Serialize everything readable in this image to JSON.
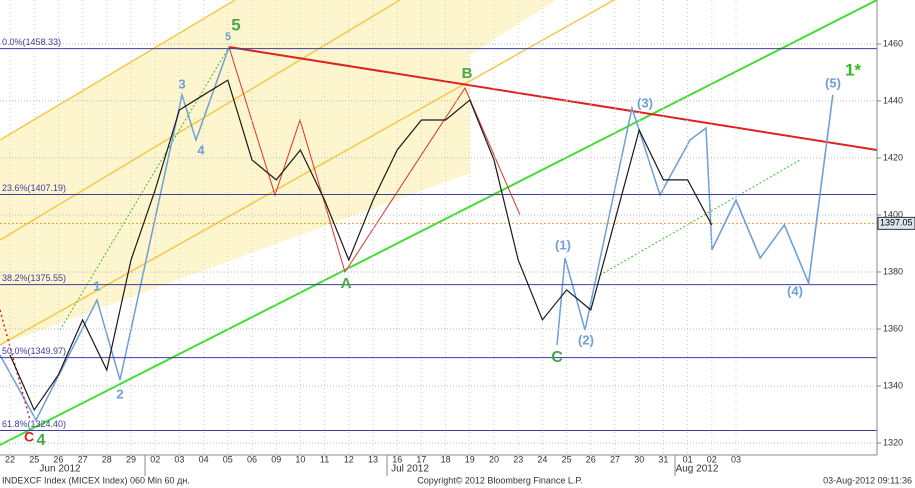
{
  "chart_data": {
    "type": "line",
    "categories": [
      "22",
      "25",
      "26",
      "27",
      "28",
      "29",
      "02",
      "03",
      "04",
      "05",
      "06",
      "09",
      "10",
      "11",
      "12",
      "13",
      "16",
      "17",
      "18",
      "19",
      "20",
      "23",
      "24",
      "25",
      "26",
      "27",
      "30",
      "31",
      "01",
      "02",
      "03",
      null,
      null,
      null,
      null
    ],
    "month_labels": [
      "Jun 2012",
      "Jul 2012",
      "Aug 2012"
    ],
    "series": [
      {
        "color": "#1a1a1a",
        "values": [
          1350.9,
          1331.6,
          1343.9,
          1363.2,
          1345.6,
          1384.2,
          1408.8,
          1436.8,
          1442.1,
          1447.3,
          1419.3,
          1412.3,
          1422.8,
          1405.2,
          1384.2,
          1405.2,
          1422.8,
          1433.3,
          1433.3,
          1440.3,
          1419.3,
          1384.2,
          1363.2,
          1373.7,
          1366.7,
          1398.2,
          1429.8,
          1412.3,
          1412.3,
          1396.5,
          null,
          null,
          null,
          null,
          null
        ]
      },
      {
        "color": "#6f9fd8",
        "values": [
          null,
          null,
          null,
          null,
          null,
          null,
          null,
          null,
          null,
          null,
          null,
          null,
          null,
          null,
          null,
          null,
          null,
          null,
          null,
          null,
          null,
          null,
          null,
          null,
          null,
          null,
          null,
          null,
          null,
          1387.7,
          1405.2,
          1384.9,
          1396.5,
          1376.1,
          1442.1
        ]
      }
    ],
    "ylim": [
      1315.8,
      1475.4
    ],
    "yticks": [
      1320,
      1340,
      1360,
      1380,
      1400,
      1420,
      1440,
      1460
    ],
    "grid": true,
    "levels": [
      {
        "value": 1458.33,
        "label": "0.0%(1458.33)"
      },
      {
        "value": 1407.19,
        "label": "23.6%(1407.19)"
      },
      {
        "value": 1375.55,
        "label": "38.2%(1375.55)"
      },
      {
        "value": 1349.97,
        "label": "50.0%(1349.97)"
      },
      {
        "value": 1324.4,
        "label": "61.8%(1324.40)"
      }
    ],
    "last_price": {
      "value": 1397.05,
      "label": "1397.05"
    },
    "annotations": [
      "5",
      "5",
      "3",
      "4",
      "1",
      "2",
      "C",
      "4",
      "A",
      "B",
      "C",
      "(1)",
      "(2)",
      "(3)",
      "(4)",
      "(5)",
      "1*"
    ],
    "footer": {
      "left": "INDEXCF Index (MICEX Index) 060 Min 60 дн.",
      "center": "Copyright© 2012 Bloomberg Finance L.P.",
      "right": "03-Aug-2012 09:11:36"
    }
  }
}
